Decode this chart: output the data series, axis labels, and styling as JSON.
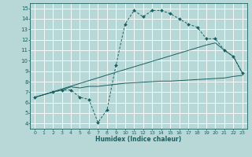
{
  "line1_x": [
    0,
    2,
    3,
    4,
    5,
    6,
    7,
    8,
    9,
    10,
    11,
    12,
    13,
    14,
    15,
    16,
    17,
    18,
    19,
    20,
    21,
    22,
    23
  ],
  "line1_y": [
    6.5,
    7.0,
    7.2,
    7.2,
    6.5,
    6.3,
    4.1,
    5.3,
    9.6,
    13.5,
    14.8,
    14.2,
    14.8,
    14.8,
    14.5,
    14.0,
    13.5,
    13.2,
    12.1,
    12.1,
    11.0,
    10.4,
    8.8
  ],
  "line2_x": [
    0,
    2,
    3,
    4,
    5,
    6,
    7,
    8,
    9,
    10,
    11,
    12,
    13,
    14,
    15,
    16,
    17,
    18,
    19,
    20,
    21,
    22,
    23
  ],
  "line2_y": [
    6.5,
    7.0,
    7.2,
    7.5,
    7.4,
    7.55,
    7.55,
    7.65,
    7.75,
    7.85,
    7.9,
    7.95,
    8.0,
    8.05,
    8.05,
    8.1,
    8.15,
    8.2,
    8.25,
    8.3,
    8.35,
    8.5,
    8.6
  ],
  "line3_x": [
    0,
    9,
    19,
    20,
    21,
    22,
    23
  ],
  "line3_y": [
    6.5,
    8.9,
    11.5,
    11.7,
    11.0,
    10.4,
    8.8
  ],
  "bg_color": "#b8d8d8",
  "line_color": "#1a6060",
  "grid_color": "#d0e8e8",
  "xlabel": "Humidex (Indice chaleur)",
  "xlim": [
    -0.5,
    23.5
  ],
  "ylim": [
    3.5,
    15.5
  ],
  "xticks": [
    0,
    1,
    2,
    3,
    4,
    5,
    6,
    7,
    8,
    9,
    10,
    11,
    12,
    13,
    14,
    15,
    16,
    17,
    18,
    19,
    20,
    21,
    22,
    23
  ],
  "yticks": [
    4,
    5,
    6,
    7,
    8,
    9,
    10,
    11,
    12,
    13,
    14,
    15
  ]
}
